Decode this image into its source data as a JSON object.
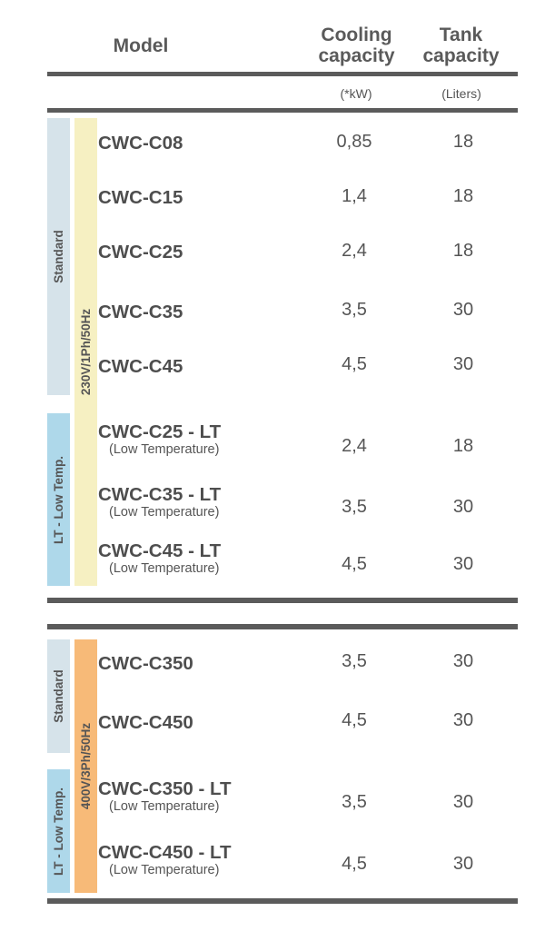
{
  "header": {
    "model": "Model",
    "cooling_line1": "Cooling",
    "cooling_line2": "capacity",
    "tank_line1": "Tank",
    "tank_line2": "capacity",
    "cooling_unit": "(*kW)",
    "tank_unit": "(Liters)"
  },
  "group1": {
    "voltage": "230V/1Ph/50Hz",
    "standard_label": "Standard",
    "lt_label": "LT - Low Temp.",
    "rows": [
      {
        "model": "CWC-C08",
        "sub": "",
        "cooling": "0,85",
        "tank": "18"
      },
      {
        "model": "CWC-C15",
        "sub": "",
        "cooling": "1,4",
        "tank": "18"
      },
      {
        "model": "CWC-C25",
        "sub": "",
        "cooling": "2,4",
        "tank": "18"
      },
      {
        "model": "CWC-C35",
        "sub": "",
        "cooling": "3,5",
        "tank": "30"
      },
      {
        "model": "CWC-C45",
        "sub": "",
        "cooling": "4,5",
        "tank": "30"
      },
      {
        "model": "CWC-C25 - LT",
        "sub": "(Low Temperature)",
        "cooling": "2,4",
        "tank": "18"
      },
      {
        "model": "CWC-C35 - LT",
        "sub": "(Low Temperature)",
        "cooling": "3,5",
        "tank": "30"
      },
      {
        "model": "CWC-C45 - LT",
        "sub": "(Low Temperature)",
        "cooling": "4,5",
        "tank": "30"
      }
    ]
  },
  "group2": {
    "voltage": "400V/3Ph/50Hz",
    "standard_label": "Standard",
    "lt_label": "LT - Low Temp.",
    "rows": [
      {
        "model": "CWC-C350",
        "sub": "",
        "cooling": "3,5",
        "tank": "30"
      },
      {
        "model": "CWC-C450",
        "sub": "",
        "cooling": "4,5",
        "tank": "30"
      },
      {
        "model": "CWC-C350 - LT",
        "sub": "(Low Temperature)",
        "cooling": "3,5",
        "tank": "30"
      },
      {
        "model": "CWC-C450 - LT",
        "sub": "(Low Temperature)",
        "cooling": "4,5",
        "tank": "30"
      }
    ]
  },
  "colors": {
    "standard_band": "#d6e3ea",
    "lt_band": "#aed8ea",
    "voltage_230_band": "#f6f0c2",
    "voltage_400_band": "#f7ba78",
    "rule": "#5b5b5b"
  }
}
